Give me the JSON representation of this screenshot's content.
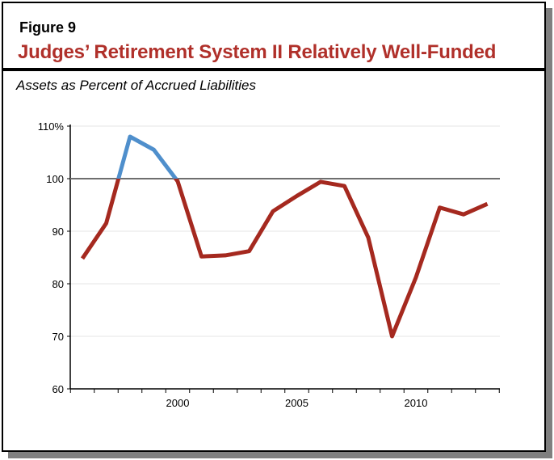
{
  "figure_label": "Figure 9",
  "title": "Judges’ Retirement System II Relatively Well-Funded",
  "subtitle": "Assets as Percent of Accrued Liabilities",
  "chart_data": {
    "type": "line",
    "title": "Judges’ Retirement System II Relatively Well-Funded",
    "subtitle": "Assets as Percent of Accrued Liabilities",
    "x": [
      1996,
      1997,
      1998,
      1999,
      2000,
      2001,
      2002,
      2003,
      2004,
      2005,
      2006,
      2007,
      2008,
      2009,
      2010,
      2011,
      2012,
      2013
    ],
    "values": [
      84.8,
      91.5,
      108,
      105.5,
      99.5,
      85.2,
      85.4,
      86.2,
      93.8,
      96.7,
      99.4,
      98.6,
      88.8,
      70,
      81.2,
      94.5,
      93.2,
      95.2
    ],
    "ylim": [
      60,
      110
    ],
    "yticks": [
      "60",
      "70",
      "80",
      "90",
      "100",
      "110%"
    ],
    "xticks": [
      "2000",
      "2005",
      "2010"
    ],
    "reference_line": 100,
    "grid": true,
    "colors": {
      "below": "#a5291f",
      "above": "#4f8fcc",
      "reference": "#6e6e6e"
    }
  }
}
